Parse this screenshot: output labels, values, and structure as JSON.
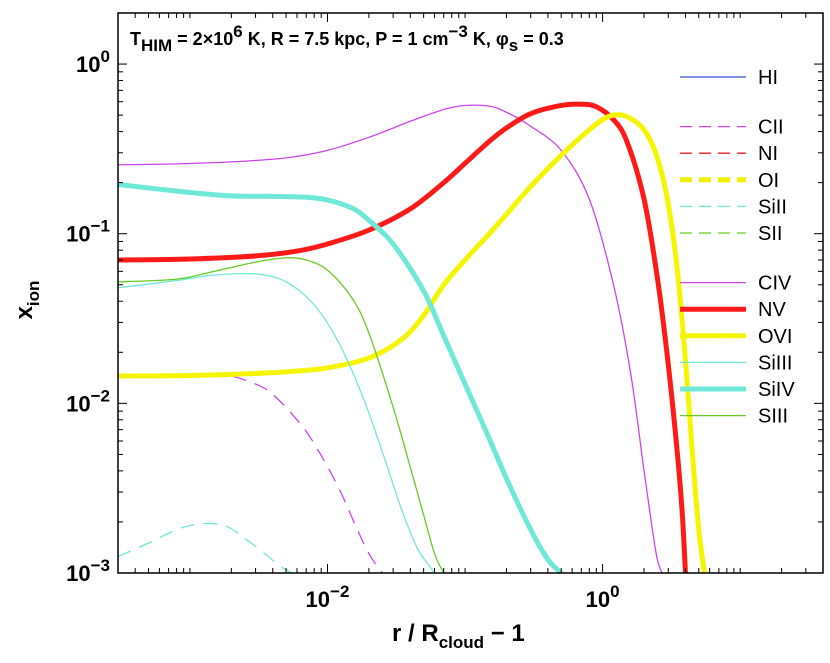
{
  "chart_data": {
    "type": "line",
    "title": {
      "t_main": "T",
      "t_sub": "HIM",
      "t_val": " = 2×10",
      "t_exp": "6",
      "t_rest": " K,  R = 7.5 kpc,  P = 1 cm",
      "p_exp": "−3",
      "p_rest": " K,  ",
      "phi": "φ",
      "phi_sub": "s",
      "phi_val": " = 0.3"
    },
    "xlabel": {
      "main": "r / R",
      "sub": "cloud",
      "rest": " − 1"
    },
    "ylabel": {
      "main": "x",
      "sub": "ion"
    },
    "x_scale": "log",
    "y_scale": "log",
    "xlim": [
      0.0003,
      40
    ],
    "ylim": [
      0.001,
      2
    ],
    "x_ticks": [
      {
        "value": 0.01,
        "base": "10",
        "exp": "−2"
      },
      {
        "value": 1,
        "base": "10",
        "exp": "0"
      }
    ],
    "y_ticks": [
      {
        "value": 1,
        "base": "10",
        "exp": "0"
      },
      {
        "value": 0.1,
        "base": "10",
        "exp": "−1"
      },
      {
        "value": 0.01,
        "base": "10",
        "exp": "−2"
      },
      {
        "value": 0.001,
        "base": "10",
        "exp": "−3"
      }
    ],
    "series": [
      {
        "name": "HI",
        "color": "#3355dd",
        "dash": "solid",
        "weight": "thin",
        "x": [],
        "y": []
      },
      {
        "name": "CII",
        "color": "#cc44ee",
        "dash": "dashed",
        "weight": "thin",
        "x": [
          0.0003,
          0.0006,
          0.001,
          0.0015,
          0.002,
          0.003,
          0.004,
          0.006,
          0.008,
          0.012,
          0.016,
          0.02,
          0.025
        ],
        "y": [
          0.0145,
          0.0145,
          0.0148,
          0.0148,
          0.0145,
          0.013,
          0.0113,
          0.008,
          0.0058,
          0.0032,
          0.0019,
          0.0013,
          0.001
        ]
      },
      {
        "name": "NI",
        "color": "#ee2222",
        "dash": "dashed",
        "weight": "thin",
        "x": [],
        "y": []
      },
      {
        "name": "OI",
        "color": "#f0f000",
        "dash": "dashed",
        "weight": "thick",
        "x": [],
        "y": []
      },
      {
        "name": "SiII",
        "color": "#70e8d8",
        "dash": "dashed",
        "weight": "thin",
        "x": [
          0.0003,
          0.0005,
          0.0008,
          0.0012,
          0.0018,
          0.0025,
          0.0035,
          0.0045,
          0.0055
        ],
        "y": [
          0.00125,
          0.0015,
          0.0018,
          0.00195,
          0.0019,
          0.0016,
          0.0013,
          0.0011,
          0.001
        ]
      },
      {
        "name": "SII",
        "color": "#66cc22",
        "dash": "dashed",
        "weight": "thin",
        "x": [],
        "y": []
      },
      {
        "name": "CIV",
        "color": "#cc44ee",
        "dash": "solid",
        "weight": "thin",
        "x": [
          0.0003,
          0.0008,
          0.002,
          0.005,
          0.01,
          0.02,
          0.04,
          0.07,
          0.1,
          0.15,
          0.2,
          0.3,
          0.5,
          0.8,
          1.2,
          1.6,
          2.0,
          2.3,
          2.5,
          2.7
        ],
        "y": [
          0.255,
          0.258,
          0.265,
          0.28,
          0.31,
          0.37,
          0.46,
          0.54,
          0.57,
          0.565,
          0.52,
          0.43,
          0.31,
          0.16,
          0.05,
          0.015,
          0.004,
          0.0018,
          0.0012,
          0.001
        ]
      },
      {
        "name": "NV",
        "color": "#ff1a1a",
        "dash": "solid",
        "weight": "thick",
        "x": [
          0.0003,
          0.001,
          0.003,
          0.006,
          0.01,
          0.02,
          0.04,
          0.07,
          0.1,
          0.15,
          0.2,
          0.3,
          0.5,
          0.7,
          0.9,
          1.2,
          1.5,
          2.0,
          2.5,
          3.0,
          3.5,
          3.8,
          4.0
        ],
        "y": [
          0.07,
          0.071,
          0.074,
          0.079,
          0.087,
          0.105,
          0.14,
          0.2,
          0.26,
          0.35,
          0.42,
          0.51,
          0.57,
          0.58,
          0.56,
          0.47,
          0.35,
          0.16,
          0.055,
          0.017,
          0.005,
          0.0022,
          0.001
        ]
      },
      {
        "name": "OVI",
        "color": "#f5f500",
        "dash": "solid",
        "weight": "thick",
        "x": [
          0.0003,
          0.001,
          0.003,
          0.006,
          0.01,
          0.02,
          0.035,
          0.05,
          0.07,
          0.1,
          0.15,
          0.2,
          0.3,
          0.5,
          0.8,
          1.0,
          1.2,
          1.5,
          2.0,
          2.5,
          3.0,
          3.5,
          4.0,
          4.5,
          5.0,
          5.5
        ],
        "y": [
          0.0145,
          0.0146,
          0.015,
          0.0155,
          0.0162,
          0.0185,
          0.024,
          0.033,
          0.05,
          0.07,
          0.1,
          0.13,
          0.19,
          0.29,
          0.41,
          0.47,
          0.5,
          0.49,
          0.41,
          0.28,
          0.15,
          0.06,
          0.018,
          0.005,
          0.0018,
          0.001
        ]
      },
      {
        "name": "SiIII",
        "color": "#70e8d8",
        "dash": "solid",
        "weight": "thin",
        "x": [
          0.0003,
          0.0008,
          0.0015,
          0.003,
          0.005,
          0.008,
          0.012,
          0.018,
          0.025,
          0.035,
          0.045,
          0.055,
          0.06
        ],
        "y": [
          0.048,
          0.053,
          0.057,
          0.058,
          0.052,
          0.038,
          0.023,
          0.011,
          0.0052,
          0.0023,
          0.0014,
          0.0011,
          0.001
        ]
      },
      {
        "name": "SiIV",
        "color": "#70e8d8",
        "dash": "solid",
        "weight": "thick",
        "x": [
          0.0003,
          0.001,
          0.002,
          0.004,
          0.007,
          0.01,
          0.015,
          0.02,
          0.03,
          0.05,
          0.07,
          0.1,
          0.15,
          0.2,
          0.3,
          0.4,
          0.5
        ],
        "y": [
          0.195,
          0.175,
          0.167,
          0.166,
          0.164,
          0.158,
          0.142,
          0.12,
          0.087,
          0.046,
          0.025,
          0.013,
          0.0062,
          0.0036,
          0.0018,
          0.0012,
          0.001
        ]
      },
      {
        "name": "SIII",
        "color": "#66cc22",
        "dash": "solid",
        "weight": "thin",
        "x": [
          0.0003,
          0.0008,
          0.0015,
          0.003,
          0.005,
          0.007,
          0.01,
          0.015,
          0.02,
          0.03,
          0.04,
          0.05,
          0.06,
          0.07
        ],
        "y": [
          0.052,
          0.054,
          0.06,
          0.068,
          0.072,
          0.07,
          0.061,
          0.042,
          0.026,
          0.0095,
          0.0042,
          0.0022,
          0.0013,
          0.001
        ]
      }
    ],
    "legend": {
      "location": "right",
      "groups": [
        [
          "HI"
        ],
        [
          "CII",
          "NI",
          "OI",
          "SiII",
          "SII"
        ],
        [
          "CIV",
          "NV",
          "OVI",
          "SiIII",
          "SiIV",
          "SIII"
        ]
      ]
    }
  }
}
